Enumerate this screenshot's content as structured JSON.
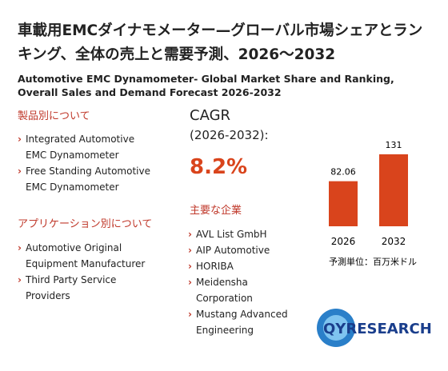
{
  "title": "車載用EMCダイナモメーター—グローバル市場シェアとランキング、全体の売上と需要予測、2026～2032",
  "subtitle": "Automotive EMC Dynamometer- Global Market Share and Ranking, Overall Sales and Demand Forecast 2026-2032",
  "products": {
    "heading": "製品別について",
    "items": [
      "Integrated Automotive EMC Dynamometer",
      "Free Standing Automotive EMC Dynamometer"
    ]
  },
  "applications": {
    "heading": "アプリケーション別について",
    "items": [
      "Automotive Original Equipment Manufacturer",
      "Third Party Service Providers"
    ]
  },
  "cagr": {
    "label": "CAGR",
    "period": "(2026-2032):",
    "value": "8.2%"
  },
  "companies": {
    "heading": "主要な企業",
    "items": [
      "AVL List GmbH",
      "AIP Automotive",
      "HORIBA",
      "Meidensha Corporation",
      "Mustang Advanced Engineering"
    ]
  },
  "chart_data": {
    "type": "bar",
    "categories": [
      "2026",
      "2032"
    ],
    "values": [
      82.06,
      131
    ],
    "color": "#d9441c",
    "note": "予測単位：百万米ドル"
  },
  "logo": {
    "text": "QYRESEARCH"
  }
}
